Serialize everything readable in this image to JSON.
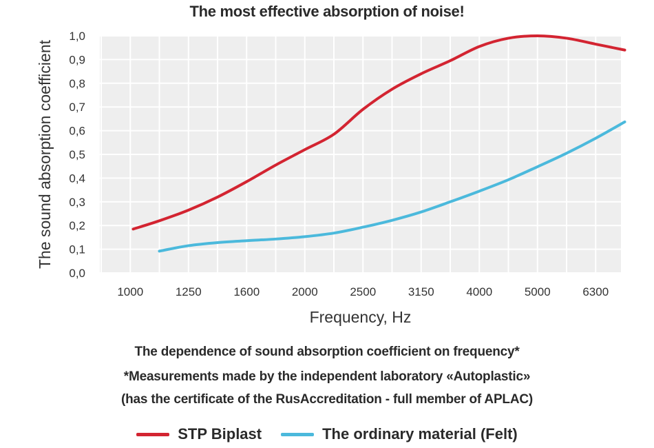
{
  "chart_data": {
    "type": "line",
    "title": "The most effective absorption of noise!",
    "xlabel": "Frequency, Hz",
    "ylabel": "The sound absorption coefficient",
    "categories": [
      "1000",
      "1250",
      "1600",
      "2000",
      "2500",
      "3150",
      "4000",
      "5000",
      "6300"
    ],
    "y_tick_labels": [
      "0,0",
      "0,1",
      "0,2",
      "0,3",
      "0,4",
      "0,5",
      "0,6",
      "0,7",
      "0,8",
      "0,9",
      "1,0"
    ],
    "ylim": [
      0,
      1.0
    ],
    "grid": true,
    "legend_position": "bottom",
    "series": [
      {
        "name": "STP Biplast",
        "color": "#d32431",
        "points": [
          [
            0.55,
            0.185
          ],
          [
            1.0,
            0.22
          ],
          [
            1.5,
            0.265
          ],
          [
            2.0,
            0.32
          ],
          [
            2.5,
            0.385
          ],
          [
            3.0,
            0.455
          ],
          [
            3.5,
            0.52
          ],
          [
            4.0,
            0.585
          ],
          [
            4.5,
            0.69
          ],
          [
            5.0,
            0.775
          ],
          [
            5.5,
            0.84
          ],
          [
            6.0,
            0.895
          ],
          [
            6.5,
            0.955
          ],
          [
            7.0,
            0.99
          ],
          [
            7.5,
            1.0
          ],
          [
            8.0,
            0.99
          ],
          [
            8.5,
            0.965
          ],
          [
            9.0,
            0.94
          ]
        ]
      },
      {
        "name": "The ordinary material (Felt)",
        "color": "#4bb9dc",
        "points": [
          [
            1.0,
            0.092
          ],
          [
            1.5,
            0.115
          ],
          [
            2.0,
            0.128
          ],
          [
            2.5,
            0.136
          ],
          [
            3.0,
            0.143
          ],
          [
            3.5,
            0.153
          ],
          [
            4.0,
            0.168
          ],
          [
            4.5,
            0.193
          ],
          [
            5.0,
            0.222
          ],
          [
            5.5,
            0.257
          ],
          [
            6.0,
            0.3
          ],
          [
            6.5,
            0.345
          ],
          [
            7.0,
            0.393
          ],
          [
            7.5,
            0.448
          ],
          [
            8.0,
            0.505
          ],
          [
            8.5,
            0.568
          ],
          [
            9.0,
            0.637
          ]
        ]
      }
    ]
  },
  "captions": {
    "line1": "The dependence of sound absorption coefficient on frequency*",
    "line2": "*Measurements made by the independent laboratory «Autoplastic»",
    "line3": "(has the certificate of the RusAccreditation - full member of APLAC)"
  }
}
